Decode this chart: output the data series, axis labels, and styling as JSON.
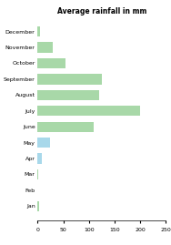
{
  "title": "Average rainfall in mm",
  "months": [
    "Jan",
    "Feb",
    "Mar",
    "Apr",
    "May",
    "June",
    "July",
    "August",
    "September",
    "October",
    "November",
    "December"
  ],
  "values": [
    3,
    0,
    2,
    8,
    25,
    110,
    200,
    120,
    125,
    55,
    30,
    5
  ],
  "colors": [
    "#a8d8a8",
    "#a8d8a8",
    "#a8d8a8",
    "#a8d8ea",
    "#a8d8ea",
    "#a8d8a8",
    "#a8d8a8",
    "#a8d8a8",
    "#a8d8a8",
    "#a8d8a8",
    "#a8d8a8",
    "#a8d8a8"
  ],
  "xlim": [
    0,
    250
  ],
  "xticks": [
    0,
    50,
    100,
    150,
    200,
    250
  ],
  "background_color": "#ffffff",
  "bar_height": 0.65,
  "title_fontsize": 5.5,
  "label_fontsize": 4.5,
  "tick_fontsize": 4.5
}
